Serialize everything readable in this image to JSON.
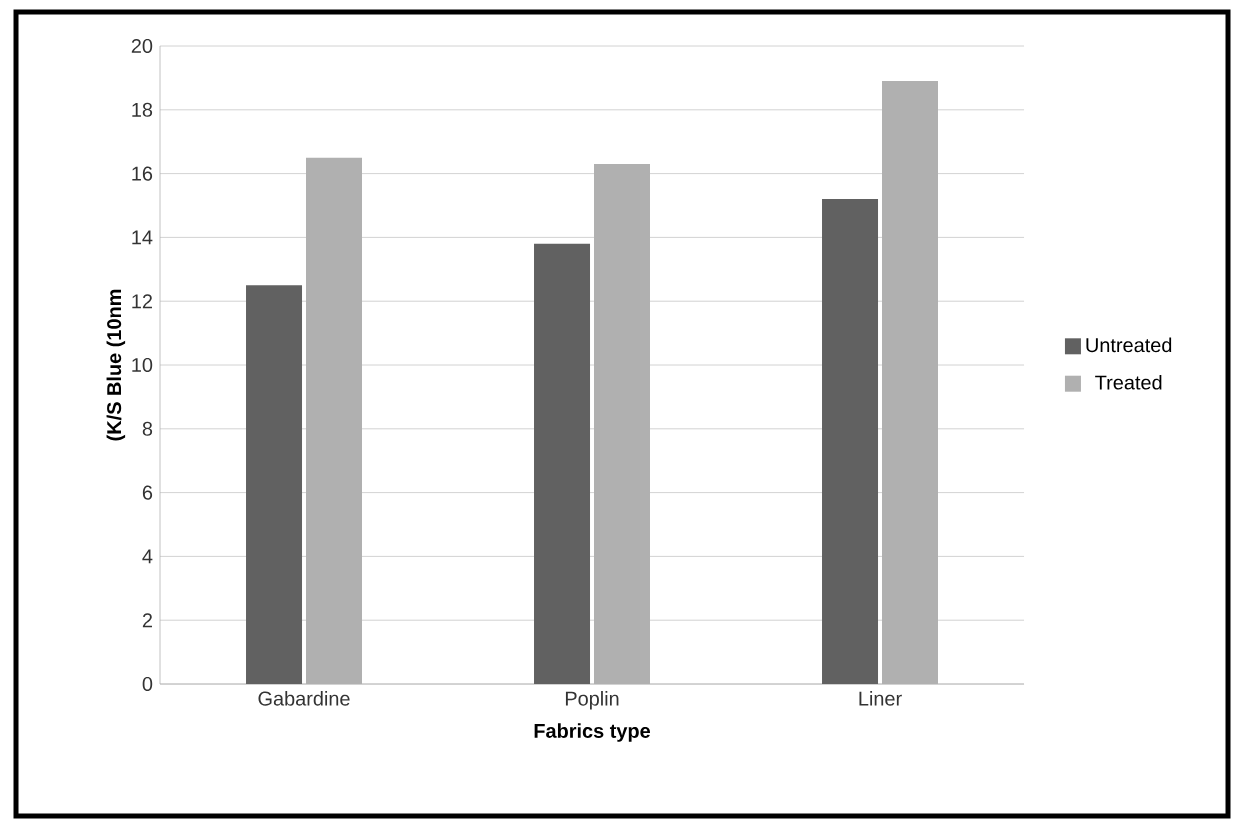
{
  "chart_data": {
    "type": "bar",
    "xlabel": "Fabrics type",
    "ylabel": "(K/S Blue (10nm",
    "categories": [
      "Gabardine",
      "Poplin",
      "Liner"
    ],
    "series": [
      {
        "name": "Untreated",
        "color": "#616161",
        "values": [
          12.5,
          13.8,
          15.2
        ]
      },
      {
        "name": "Treated",
        "color": "#b0b0b0",
        "values": [
          16.5,
          16.3,
          18.9
        ]
      }
    ],
    "ylim": [
      0,
      20
    ],
    "yticks": [
      0,
      2,
      4,
      6,
      8,
      10,
      12,
      14,
      16,
      18,
      20
    ],
    "grid": "y",
    "legend": "right"
  }
}
